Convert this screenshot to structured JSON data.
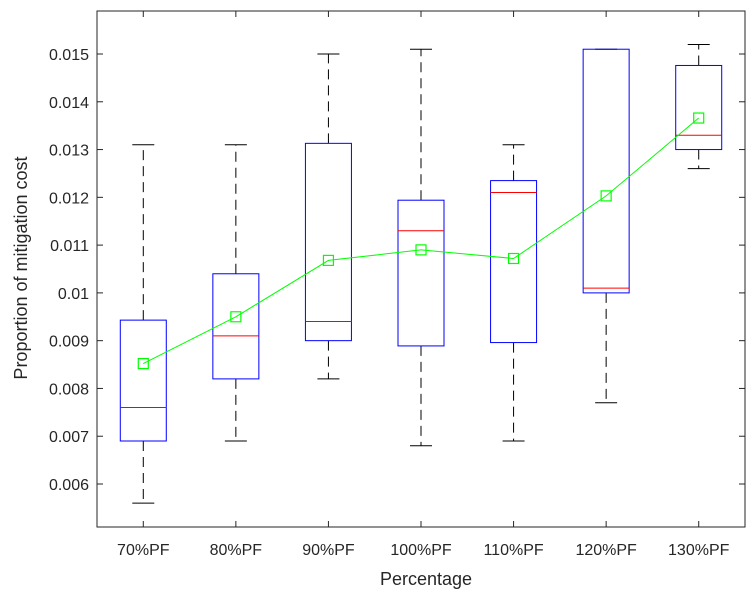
{
  "chart_data": {
    "type": "boxplot",
    "xlabel": "Percentage",
    "ylabel": "Proportion of mitigation cost",
    "categories": [
      "70%PF",
      "80%PF",
      "90%PF",
      "100%PF",
      "110%PF",
      "120%PF",
      "130%PF"
    ],
    "ylim": [
      0.0051,
      0.0159
    ],
    "yticks": [
      0.006,
      0.007,
      0.008,
      0.009,
      0.01,
      0.011,
      0.012,
      0.013,
      0.014,
      0.015
    ],
    "ytick_labels": [
      "0.006",
      "0.007",
      "0.008",
      "0.009",
      "0.01",
      "0.011",
      "0.012",
      "0.013",
      "0.014",
      "0.015"
    ],
    "boxes": [
      {
        "whisker_low": 0.0056,
        "q1": 0.0069,
        "median": 0.0076,
        "q3": 0.00943,
        "whisker_high": 0.0131
      },
      {
        "whisker_low": 0.0069,
        "q1": 0.0082,
        "median": 0.0091,
        "q3": 0.0104,
        "whisker_high": 0.0131
      },
      {
        "whisker_low": 0.0082,
        "q1": 0.009,
        "median": 0.0094,
        "q3": 0.01313,
        "whisker_high": 0.015
      },
      {
        "whisker_low": 0.0068,
        "q1": 0.00889,
        "median": 0.0113,
        "q3": 0.01194,
        "whisker_high": 0.0151
      },
      {
        "whisker_low": 0.0069,
        "q1": 0.00896,
        "median": 0.0121,
        "q3": 0.01235,
        "whisker_high": 0.0131
      },
      {
        "whisker_low": 0.0077,
        "q1": 0.01,
        "median": 0.0101,
        "q3": 0.0151,
        "whisker_high": 0.0151
      },
      {
        "whisker_low": 0.0126,
        "q1": 0.013,
        "median": 0.0133,
        "q3": 0.01476,
        "whisker_high": 0.0152
      }
    ],
    "mean_line": [
      0.00852,
      0.0095,
      0.01068,
      0.0109,
      0.01072,
      0.01203,
      0.01366
    ],
    "grid": false,
    "colors": {
      "box": "#0000ff",
      "median": "#ff0000",
      "whisker": "#000000",
      "mean": "#00ff00",
      "axis": "#262626"
    }
  }
}
